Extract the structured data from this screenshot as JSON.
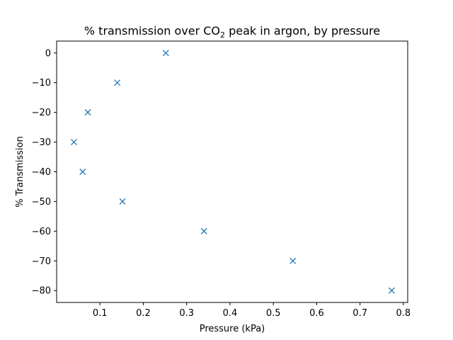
{
  "chart_data": {
    "type": "scatter",
    "title_prefix": "% transmission over CO",
    "title_subscript": "2",
    "title_suffix": " peak in argon, by pressure",
    "xlabel": "Pressure (kPa)",
    "ylabel": "% Transmission",
    "xlim": [
      0.0,
      0.81
    ],
    "ylim": [
      -84,
      4
    ],
    "xticks": [
      0.1,
      0.2,
      0.3,
      0.4,
      0.5,
      0.6,
      0.7,
      0.8
    ],
    "xtick_labels": [
      "0.1",
      "0.2",
      "0.3",
      "0.4",
      "0.5",
      "0.6",
      "0.7",
      "0.8"
    ],
    "yticks": [
      0,
      -10,
      -20,
      -30,
      -40,
      -50,
      -60,
      -70,
      -80
    ],
    "ytick_labels": [
      "0",
      "−10",
      "−20",
      "−30",
      "−40",
      "−50",
      "−60",
      "−70",
      "−80"
    ],
    "marker": "x",
    "marker_color": "#1f77b4",
    "grid": false,
    "legend": "none",
    "series": [
      {
        "x": [
          0.252,
          0.14,
          0.072,
          0.04,
          0.06,
          0.152,
          0.34,
          0.545,
          0.773
        ],
        "y": [
          0,
          -10,
          -20,
          -30,
          -40,
          -50,
          -60,
          -70,
          -80
        ]
      }
    ]
  }
}
